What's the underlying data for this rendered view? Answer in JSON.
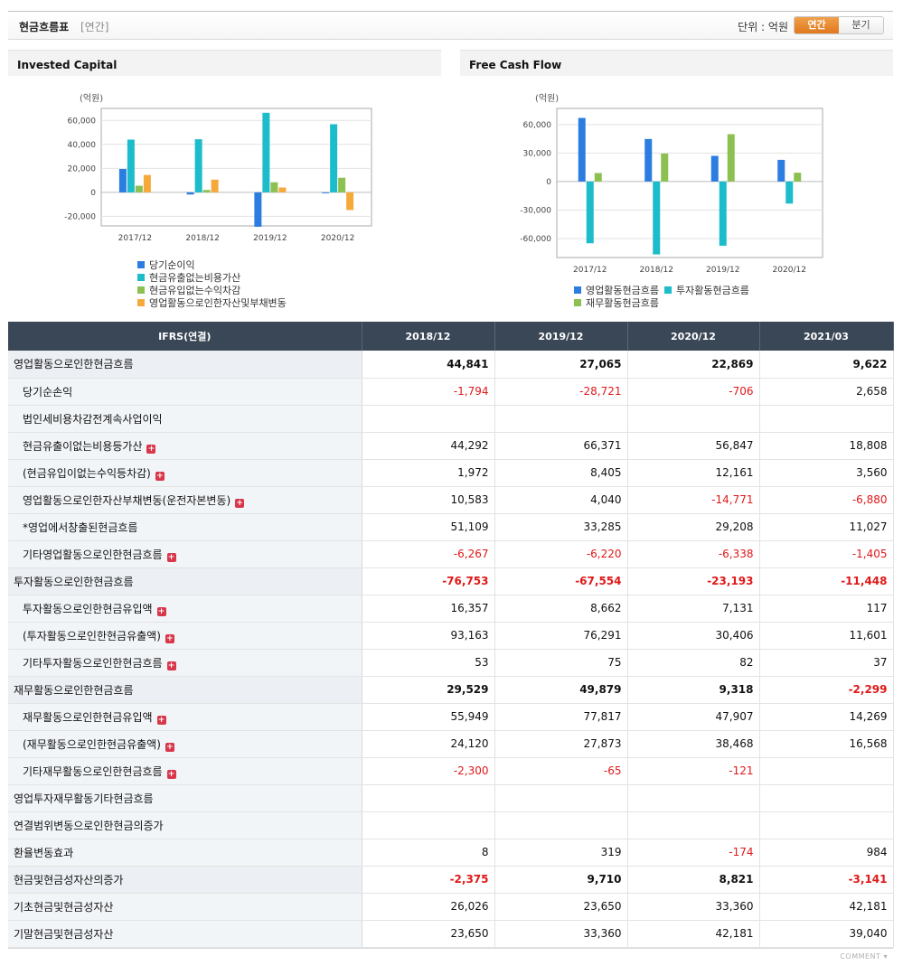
{
  "header": {
    "title": "현금흐름표",
    "subtitle": "[연간]",
    "unit_label": "단위 : 억원",
    "toggle_annual": "연간",
    "toggle_quarter": "분기"
  },
  "charts": {
    "invested": {
      "panel_title": "Invested Capital"
    },
    "fcf": {
      "panel_title": "Free Cash Flow"
    }
  },
  "chart_data": [
    {
      "type": "bar",
      "title": "Invested Capital",
      "ylabel": "(억원)",
      "categories": [
        "2017/12",
        "2018/12",
        "2019/12",
        "2020/12"
      ],
      "ylim": [
        -28000,
        70000
      ],
      "yticks": [
        60000,
        40000,
        20000,
        0,
        -20000
      ],
      "ytick_labels": [
        "60,000",
        "40,000",
        "20,000",
        "0",
        "-20,000"
      ],
      "grid": true,
      "legend_position": "bottom",
      "series": [
        {
          "name": "당기순이익",
          "color": "#2b7de0",
          "values": [
            19500,
            -1794,
            -28721,
            -706
          ]
        },
        {
          "name": "현금유출없는비용가산",
          "color": "#1cbccb",
          "values": [
            44000,
            44292,
            66371,
            56847
          ]
        },
        {
          "name": "현금유입없는수익차감",
          "color": "#8cc152",
          "values": [
            5500,
            1972,
            8405,
            12161
          ]
        },
        {
          "name": "영업활동으로인한자산및부채변동",
          "color": "#f6a93b",
          "values": [
            14500,
            10583,
            4040,
            -14771
          ]
        }
      ]
    },
    {
      "type": "bar",
      "title": "Free Cash Flow",
      "ylabel": "(억원)",
      "categories": [
        "2017/12",
        "2018/12",
        "2019/12",
        "2020/12"
      ],
      "ylim": [
        -80000,
        77000
      ],
      "yticks": [
        60000,
        30000,
        0,
        -30000,
        -60000
      ],
      "ytick_labels": [
        "60,000",
        "30,000",
        "0",
        "-30,000",
        "-60,000"
      ],
      "grid": true,
      "legend_position": "bottom",
      "series": [
        {
          "name": "영업활동현금흐름",
          "color": "#2b7de0",
          "values": [
            67000,
            44841,
            27065,
            22869
          ]
        },
        {
          "name": "투자활동현금흐름",
          "color": "#1cbccb",
          "values": [
            -65000,
            -76753,
            -67554,
            -23193
          ]
        },
        {
          "name": "재무활동현금흐름",
          "color": "#8cc152",
          "values": [
            9000,
            29529,
            49879,
            9318
          ]
        }
      ]
    }
  ],
  "table": {
    "corner": "IFRS(연결)",
    "columns": [
      "2018/12",
      "2019/12",
      "2020/12",
      "2021/03"
    ],
    "rows": [
      {
        "label": "영업활동으로인한현금흐름",
        "level": 0,
        "major": true,
        "expand": false,
        "values": [
          "44,841",
          "27,065",
          "22,869",
          "9,622"
        ]
      },
      {
        "label": "당기순손익",
        "level": 1,
        "major": false,
        "expand": false,
        "values": [
          "-1,794",
          "-28,721",
          "-706",
          "2,658"
        ]
      },
      {
        "label": "법인세비용차감전계속사업이익",
        "level": 1,
        "major": false,
        "expand": false,
        "values": [
          "",
          "",
          "",
          ""
        ]
      },
      {
        "label": "현금유출이없는비용등가산",
        "level": 1,
        "major": false,
        "expand": true,
        "values": [
          "44,292",
          "66,371",
          "56,847",
          "18,808"
        ]
      },
      {
        "label": "(현금유입이없는수익등차감)",
        "level": 1,
        "major": false,
        "expand": true,
        "values": [
          "1,972",
          "8,405",
          "12,161",
          "3,560"
        ]
      },
      {
        "label": "영업활동으로인한자산부채변동(운전자본변동)",
        "level": 1,
        "major": false,
        "expand": true,
        "values": [
          "10,583",
          "4,040",
          "-14,771",
          "-6,880"
        ]
      },
      {
        "label": "*영업에서창출된현금흐름",
        "level": 1,
        "major": false,
        "expand": false,
        "values": [
          "51,109",
          "33,285",
          "29,208",
          "11,027"
        ]
      },
      {
        "label": "기타영업활동으로인한현금흐름",
        "level": 1,
        "major": false,
        "expand": true,
        "values": [
          "-6,267",
          "-6,220",
          "-6,338",
          "-1,405"
        ]
      },
      {
        "label": "투자활동으로인한현금흐름",
        "level": 0,
        "major": true,
        "expand": false,
        "values": [
          "-76,753",
          "-67,554",
          "-23,193",
          "-11,448"
        ]
      },
      {
        "label": "투자활동으로인한현금유입액",
        "level": 1,
        "major": false,
        "expand": true,
        "values": [
          "16,357",
          "8,662",
          "7,131",
          "117"
        ]
      },
      {
        "label": "(투자활동으로인한현금유출액)",
        "level": 1,
        "major": false,
        "expand": true,
        "values": [
          "93,163",
          "76,291",
          "30,406",
          "11,601"
        ]
      },
      {
        "label": "기타투자활동으로인한현금흐름",
        "level": 1,
        "major": false,
        "expand": true,
        "values": [
          "53",
          "75",
          "82",
          "37"
        ]
      },
      {
        "label": "재무활동으로인한현금흐름",
        "level": 0,
        "major": true,
        "expand": false,
        "values": [
          "29,529",
          "49,879",
          "9,318",
          "-2,299"
        ]
      },
      {
        "label": "재무활동으로인한현금유입액",
        "level": 1,
        "major": false,
        "expand": true,
        "values": [
          "55,949",
          "77,817",
          "47,907",
          "14,269"
        ]
      },
      {
        "label": "(재무활동으로인한현금유출액)",
        "level": 1,
        "major": false,
        "expand": true,
        "values": [
          "24,120",
          "27,873",
          "38,468",
          "16,568"
        ]
      },
      {
        "label": "기타재무활동으로인한현금흐름",
        "level": 1,
        "major": false,
        "expand": true,
        "values": [
          "-2,300",
          "-65",
          "-121",
          ""
        ]
      },
      {
        "label": "영업투자재무활동기타현금흐름",
        "level": 0,
        "major": false,
        "expand": false,
        "values": [
          "",
          "",
          "",
          ""
        ]
      },
      {
        "label": "연결범위변동으로인한현금의증가",
        "level": 0,
        "major": false,
        "expand": false,
        "values": [
          "",
          "",
          "",
          ""
        ]
      },
      {
        "label": "환율변동효과",
        "level": 0,
        "major": false,
        "expand": false,
        "values": [
          "8",
          "319",
          "-174",
          "984"
        ]
      },
      {
        "label": "현금및현금성자산의증가",
        "level": 0,
        "major": true,
        "expand": false,
        "values": [
          "-2,375",
          "9,710",
          "8,821",
          "-3,141"
        ]
      },
      {
        "label": "기초현금및현금성자산",
        "level": 0,
        "major": false,
        "expand": false,
        "values": [
          "26,026",
          "23,650",
          "33,360",
          "42,181"
        ]
      },
      {
        "label": "기말현금및현금성자산",
        "level": 0,
        "major": false,
        "expand": false,
        "values": [
          "23,650",
          "33,360",
          "42,181",
          "39,040"
        ]
      }
    ]
  },
  "footer": {
    "comment": "COMMENT"
  }
}
